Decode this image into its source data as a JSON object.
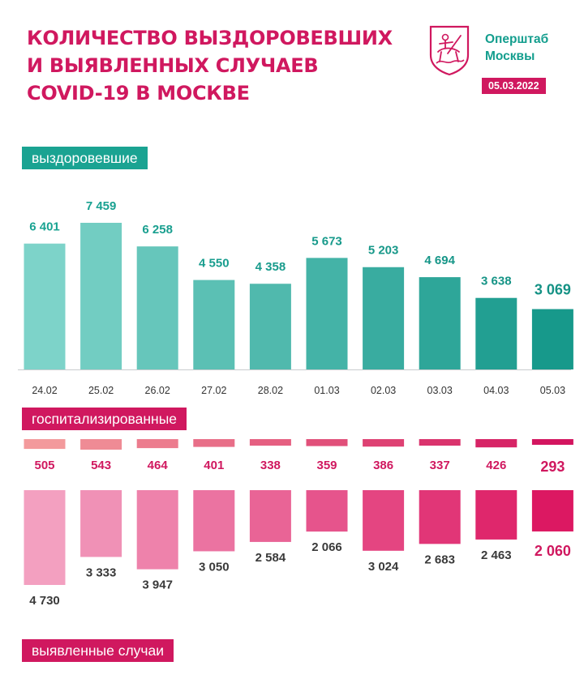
{
  "header": {
    "title_lines": [
      "КОЛИЧЕСТВО ВЫЗДОРОВЕВШИХ",
      "И ВЫЯВЛЕННЫХ СЛУЧАЕВ",
      "COVID-19 В МОСКВЕ"
    ],
    "org_lines": [
      "Оперштаб",
      "Москвы"
    ],
    "date": "05.03.2022"
  },
  "colors": {
    "brand_pink": "#d0185f",
    "brand_teal": "#1aa392",
    "recovered_start": "#7dd3c9",
    "recovered_end": "#17998b",
    "hosp_start": "#f39a9c",
    "hosp_end": "#d3155f",
    "cases_start": "#f3a0c0",
    "cases_end": "#dc1862"
  },
  "chart_data": {
    "type": "bar",
    "categories": [
      "24.02",
      "25.02",
      "26.02",
      "27.02",
      "28.02",
      "01.03",
      "02.03",
      "03.03",
      "04.03",
      "05.03"
    ],
    "series": [
      {
        "name": "выздоровевшие",
        "values": [
          6401,
          7459,
          6258,
          4550,
          4358,
          5673,
          5203,
          4694,
          3638,
          3069
        ],
        "labels": [
          "6 401",
          "7 459",
          "6 258",
          "4 550",
          "4 358",
          "5 673",
          "5 203",
          "4 694",
          "3 638",
          "3 069"
        ]
      },
      {
        "name": "госпитализированные",
        "values": [
          505,
          543,
          464,
          401,
          338,
          359,
          386,
          337,
          426,
          293
        ],
        "labels": [
          "505",
          "543",
          "464",
          "401",
          "338",
          "359",
          "386",
          "337",
          "426",
          "293"
        ]
      },
      {
        "name": "выявленные случаи",
        "values": [
          4730,
          3333,
          3947,
          3050,
          2584,
          2066,
          3024,
          2683,
          2463,
          2060
        ],
        "labels": [
          "4 730",
          "3 333",
          "3 947",
          "3 050",
          "2 584",
          "2 066",
          "3 024",
          "2 683",
          "2 463",
          "2 060"
        ]
      }
    ]
  }
}
